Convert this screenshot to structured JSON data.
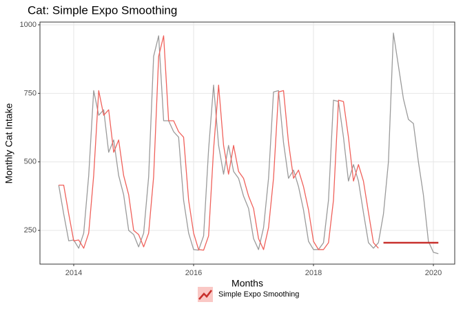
{
  "chart_data": {
    "type": "line",
    "title": "Cat: Simple Expo Smoothing",
    "x_label": "Months",
    "y_label": "Monthly Cat Intake",
    "x": [
      2013.75,
      2013.833,
      2013.917,
      2014.0,
      2014.083,
      2014.167,
      2014.25,
      2014.333,
      2014.417,
      2014.5,
      2014.583,
      2014.667,
      2014.75,
      2014.833,
      2014.917,
      2015.0,
      2015.083,
      2015.167,
      2015.25,
      2015.333,
      2015.417,
      2015.5,
      2015.583,
      2015.667,
      2015.75,
      2015.833,
      2015.917,
      2016.0,
      2016.083,
      2016.167,
      2016.25,
      2016.333,
      2016.417,
      2016.5,
      2016.583,
      2016.667,
      2016.75,
      2016.833,
      2016.917,
      2017.0,
      2017.083,
      2017.167,
      2017.25,
      2017.333,
      2017.417,
      2017.5,
      2017.583,
      2017.667,
      2017.75,
      2017.833,
      2017.917,
      2018.0,
      2018.083,
      2018.167,
      2018.25,
      2018.333,
      2018.417,
      2018.5,
      2018.583,
      2018.667,
      2018.75,
      2018.833,
      2018.917,
      2019.0,
      2019.083,
      2019.167,
      2019.25,
      2019.333,
      2019.417,
      2019.5,
      2019.583,
      2019.667,
      2019.75,
      2019.833,
      2019.917,
      2020.0,
      2020.083
    ],
    "series": [
      {
        "color": "#9a9a9a",
        "width": 1.3,
        "values": [
          415,
          310,
          212,
          215,
          185,
          240,
          450,
          760,
          670,
          690,
          535,
          580,
          450,
          380,
          250,
          235,
          190,
          240,
          445,
          885,
          960,
          650,
          650,
          610,
          590,
          360,
          240,
          180,
          178,
          230,
          545,
          780,
          560,
          455,
          560,
          465,
          440,
          375,
          330,
          220,
          180,
          260,
          440,
          755,
          760,
          570,
          440,
          470,
          410,
          325,
          210,
          180,
          180,
          205,
          360,
          725,
          720,
          590,
          430,
          490,
          430,
          315,
          205,
          185,
          205,
          310,
          500,
          970,
          850,
          730,
          655,
          640,
          500,
          380,
          210,
          170,
          165
        ]
      },
      {
        "name": "Simple Expo Smoothing",
        "color": "#f0605a",
        "width": 1.3,
        "values": [
          415,
          415,
          310,
          212,
          215,
          185,
          240,
          450,
          760,
          670,
          690,
          535,
          580,
          450,
          380,
          250,
          235,
          190,
          240,
          445,
          885,
          960,
          650,
          650,
          610,
          590,
          360,
          240,
          180,
          178,
          230,
          545,
          780,
          560,
          455,
          560,
          465,
          440,
          375,
          330,
          220,
          180,
          260,
          440,
          755,
          760,
          570,
          440,
          470,
          410,
          325,
          210,
          180,
          180,
          205,
          360,
          725,
          720,
          590,
          430,
          490,
          430,
          315,
          205,
          185,
          null,
          null,
          null,
          null,
          null,
          null,
          null,
          null,
          null,
          null,
          null,
          null
        ]
      },
      {
        "color": "#c8302c",
        "width": 2.6,
        "values": [
          null,
          null,
          null,
          null,
          null,
          null,
          null,
          null,
          null,
          null,
          null,
          null,
          null,
          null,
          null,
          null,
          null,
          null,
          null,
          null,
          null,
          null,
          null,
          null,
          null,
          null,
          null,
          null,
          null,
          null,
          null,
          null,
          null,
          null,
          null,
          null,
          null,
          null,
          null,
          null,
          null,
          null,
          null,
          null,
          null,
          null,
          null,
          null,
          null,
          null,
          null,
          null,
          null,
          null,
          null,
          null,
          null,
          null,
          null,
          null,
          null,
          null,
          null,
          null,
          null,
          205,
          205,
          205,
          205,
          205,
          205,
          205,
          205,
          205,
          205,
          205,
          205
        ]
      }
    ],
    "xlim": [
      2013.437,
      2020.356
    ],
    "ylim": [
      127,
      1010
    ],
    "xticks": [
      2014,
      2016,
      2018,
      2020
    ],
    "yticks": [
      250,
      500,
      750,
      1000
    ],
    "grid": true
  }
}
